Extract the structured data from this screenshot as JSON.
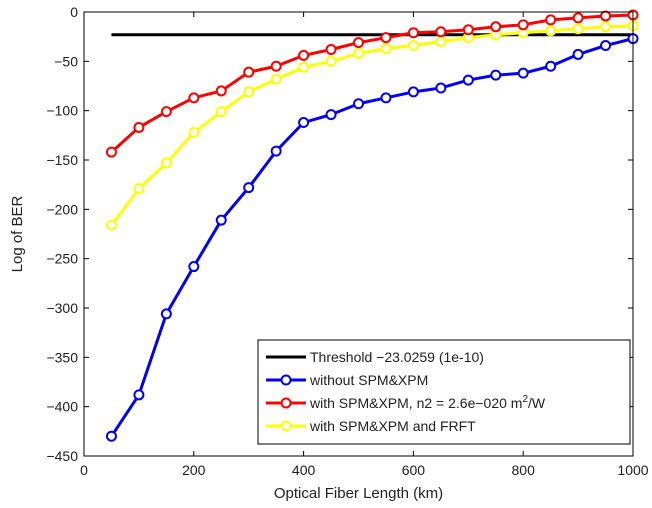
{
  "chart_data": {
    "type": "line",
    "title": "",
    "xlabel": "Optical Fiber Length (km)",
    "ylabel": "Log of BER",
    "xlim": [
      0,
      1000
    ],
    "ylim": [
      -450,
      0
    ],
    "xticks": [
      0,
      200,
      400,
      600,
      800,
      1000
    ],
    "yticks": [
      0,
      -50,
      -100,
      -150,
      -200,
      -250,
      -300,
      -350,
      -400,
      -450
    ],
    "xtick_labels": [
      "0",
      "200",
      "400",
      "600",
      "800",
      "1000"
    ],
    "ytick_labels": [
      "0",
      "−50",
      "−100",
      "−150",
      "−200",
      "−250",
      "−300",
      "−350",
      "−400",
      "−450"
    ],
    "grid": false,
    "legend_position": "bottom-right",
    "threshold": {
      "name": "Threshold −23.0259 (1e-10)",
      "value": -23.0259,
      "x": [
        50,
        1000
      ],
      "color": "#000000"
    },
    "series": [
      {
        "name": "without SPM&XPM",
        "color": "#0000ff",
        "x": [
          50,
          100,
          150,
          200,
          250,
          300,
          350,
          400,
          450,
          500,
          550,
          600,
          650,
          700,
          750,
          800,
          850,
          900,
          950,
          1000
        ],
        "values": [
          -430,
          -388,
          -306,
          -258,
          -211,
          -178,
          -141,
          -112,
          -104,
          -93,
          -87,
          -81,
          -77,
          -69,
          -64,
          -62,
          -55,
          -43,
          -34,
          -27
        ]
      },
      {
        "name": "with SPM&XPM, n2 = 2.6e−020 m²/W",
        "name_main": "with SPM&XPM, n2 = 2.6e−020 m",
        "name_sup": "2",
        "name_tail": "/W",
        "color": "#ff0000",
        "x": [
          50,
          100,
          150,
          200,
          250,
          300,
          350,
          400,
          450,
          500,
          550,
          600,
          650,
          700,
          750,
          800,
          850,
          900,
          950,
          1000
        ],
        "values": [
          -142,
          -117,
          -101,
          -87,
          -80,
          -61,
          -55,
          -44,
          -38,
          -31,
          -26,
          -21,
          -20,
          -18,
          -15,
          -13,
          -8,
          -6,
          -4,
          -3
        ]
      },
      {
        "name": "with SPM&XPM and FRFT",
        "color": "#ffff00",
        "x": [
          50,
          100,
          150,
          200,
          250,
          300,
          350,
          400,
          450,
          500,
          550,
          600,
          650,
          700,
          750,
          800,
          850,
          900,
          950,
          1000
        ],
        "values": [
          -216,
          -179,
          -153,
          -122,
          -101,
          -81,
          -68,
          -56,
          -50,
          -42,
          -37,
          -34,
          -30,
          -26,
          -23,
          -21,
          -19,
          -17,
          -15,
          -14
        ]
      }
    ]
  }
}
